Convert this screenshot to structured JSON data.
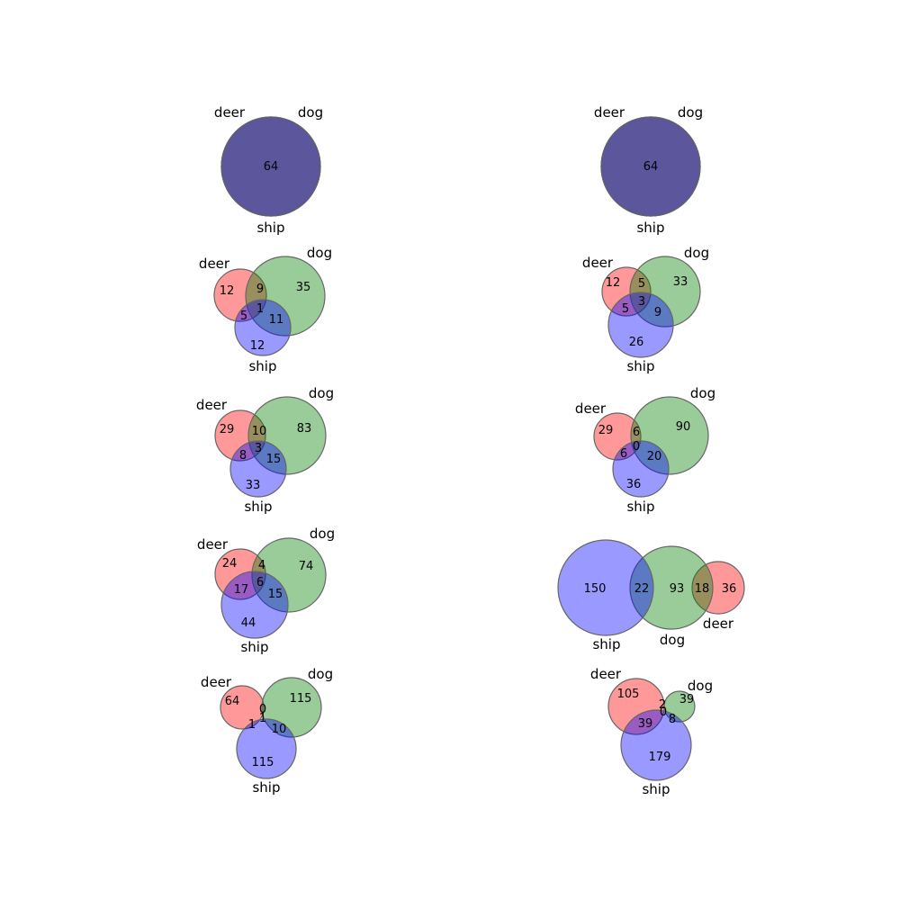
{
  "colors": {
    "deer": "#ff0000",
    "dog": "#008000",
    "ship": "#0000ff",
    "outline": "#666666"
  },
  "diagrams": [
    {
      "id": "d1",
      "labels": {
        "deer": "deer",
        "dog": "dog",
        "ship": "ship"
      },
      "regions": [
        {
          "sets": "deer+dog+ship",
          "value": "64"
        }
      ]
    },
    {
      "id": "d2",
      "labels": {
        "deer": "deer",
        "dog": "dog",
        "ship": "ship"
      },
      "regions": [
        {
          "sets": "deer+dog+ship",
          "value": "64"
        }
      ]
    },
    {
      "id": "d3",
      "labels": {
        "deer": "deer",
        "dog": "dog",
        "ship": "ship"
      },
      "regions": [
        {
          "sets": "deer",
          "value": "12"
        },
        {
          "sets": "deer+dog",
          "value": "9"
        },
        {
          "sets": "dog",
          "value": "35"
        },
        {
          "sets": "deer+dog+ship",
          "value": "1"
        },
        {
          "sets": "deer+ship",
          "value": "5"
        },
        {
          "sets": "dog+ship",
          "value": "11"
        },
        {
          "sets": "ship",
          "value": "12"
        }
      ]
    },
    {
      "id": "d4",
      "labels": {
        "deer": "deer",
        "dog": "dog",
        "ship": "ship"
      },
      "regions": [
        {
          "sets": "deer",
          "value": "12"
        },
        {
          "sets": "deer+dog",
          "value": "5"
        },
        {
          "sets": "dog",
          "value": "33"
        },
        {
          "sets": "deer+dog+ship",
          "value": "3"
        },
        {
          "sets": "deer+ship",
          "value": "5"
        },
        {
          "sets": "dog+ship",
          "value": "9"
        },
        {
          "sets": "ship",
          "value": "26"
        }
      ]
    },
    {
      "id": "d5",
      "labels": {
        "deer": "deer",
        "dog": "dog",
        "ship": "ship"
      },
      "regions": [
        {
          "sets": "deer",
          "value": "29"
        },
        {
          "sets": "deer+dog",
          "value": "10"
        },
        {
          "sets": "dog",
          "value": "83"
        },
        {
          "sets": "deer+dog+ship",
          "value": "3"
        },
        {
          "sets": "deer+ship",
          "value": "8"
        },
        {
          "sets": "dog+ship",
          "value": "15"
        },
        {
          "sets": "ship",
          "value": "33"
        }
      ]
    },
    {
      "id": "d6",
      "labels": {
        "deer": "deer",
        "dog": "dog",
        "ship": "ship"
      },
      "regions": [
        {
          "sets": "deer",
          "value": "29"
        },
        {
          "sets": "deer+dog",
          "value": "6"
        },
        {
          "sets": "dog",
          "value": "90"
        },
        {
          "sets": "deer+dog+ship",
          "value": "0"
        },
        {
          "sets": "deer+ship",
          "value": "6"
        },
        {
          "sets": "dog+ship",
          "value": "20"
        },
        {
          "sets": "ship",
          "value": "36"
        }
      ]
    },
    {
      "id": "d7",
      "labels": {
        "deer": "deer",
        "dog": "dog",
        "ship": "ship"
      },
      "regions": [
        {
          "sets": "deer",
          "value": "24"
        },
        {
          "sets": "deer+dog",
          "value": "4"
        },
        {
          "sets": "dog",
          "value": "74"
        },
        {
          "sets": "deer+dog+ship",
          "value": "6"
        },
        {
          "sets": "deer+ship",
          "value": "17"
        },
        {
          "sets": "dog+ship",
          "value": "15"
        },
        {
          "sets": "ship",
          "value": "44"
        }
      ]
    },
    {
      "id": "d8",
      "labels": {
        "deer": "deer",
        "dog": "dog",
        "ship": "ship"
      },
      "regions": [
        {
          "sets": "ship",
          "value": "150"
        },
        {
          "sets": "dog+ship",
          "value": "22"
        },
        {
          "sets": "dog",
          "value": "93"
        },
        {
          "sets": "deer+dog",
          "value": "18"
        },
        {
          "sets": "deer",
          "value": "36"
        }
      ]
    },
    {
      "id": "d9",
      "labels": {
        "deer": "deer",
        "dog": "dog",
        "ship": "ship"
      },
      "regions": [
        {
          "sets": "deer",
          "value": "64"
        },
        {
          "sets": "deer+dog",
          "value": "0"
        },
        {
          "sets": "dog",
          "value": "115"
        },
        {
          "sets": "deer+dog+ship",
          "value": "1"
        },
        {
          "sets": "deer+ship",
          "value": "1"
        },
        {
          "sets": "dog+ship",
          "value": "10"
        },
        {
          "sets": "ship",
          "value": "115"
        }
      ]
    },
    {
      "id": "d10",
      "labels": {
        "deer": "deer",
        "dog": "dog",
        "ship": "ship"
      },
      "regions": [
        {
          "sets": "deer",
          "value": "105"
        },
        {
          "sets": "deer+dog",
          "value": "2"
        },
        {
          "sets": "dog",
          "value": "39"
        },
        {
          "sets": "deer+dog+ship",
          "value": "0"
        },
        {
          "sets": "deer+ship",
          "value": "39"
        },
        {
          "sets": "dog+ship",
          "value": "8"
        },
        {
          "sets": "ship",
          "value": "179"
        }
      ]
    }
  ]
}
